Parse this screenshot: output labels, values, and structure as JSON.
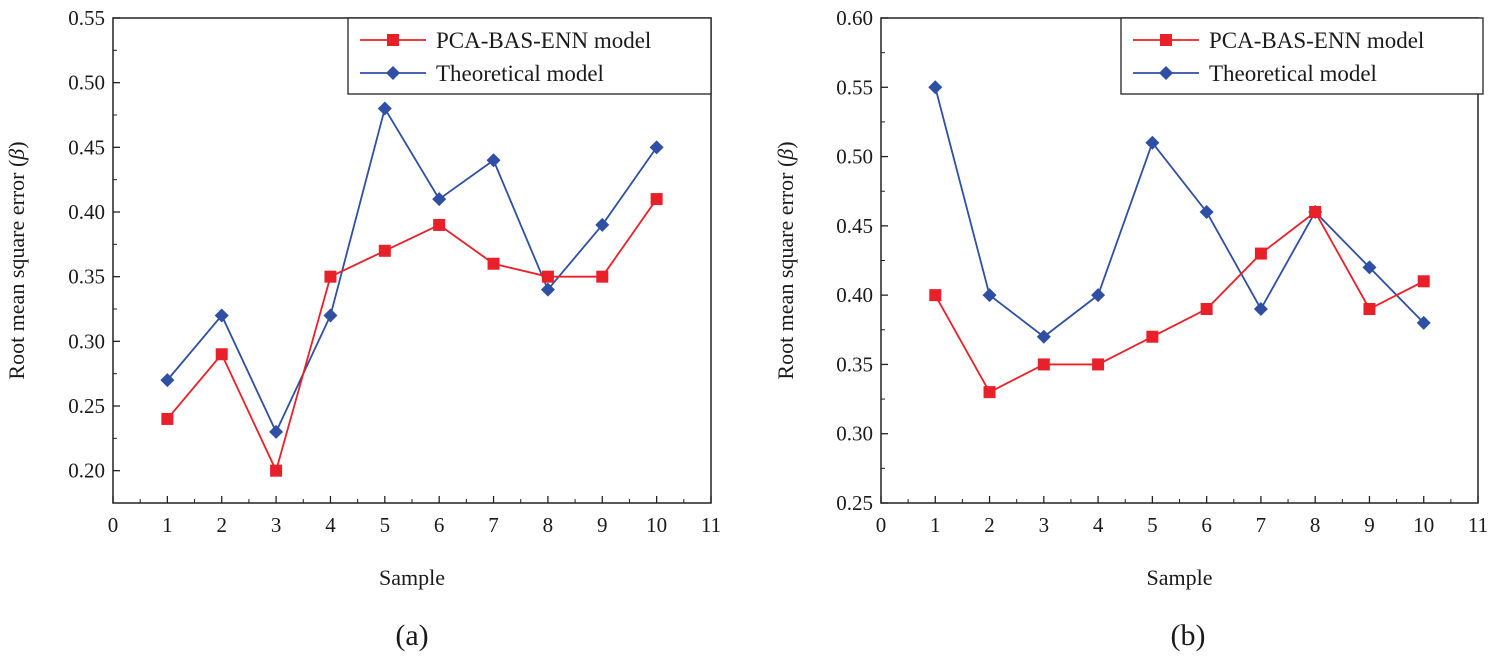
{
  "chart_data": [
    {
      "type": "line",
      "panel_label": "(a)",
      "xlabel": "Sample",
      "ylabel_prefix": "Root mean square error (",
      "ylabel_symbol": "β",
      "ylabel_suffix": ")",
      "xlim": [
        0,
        11
      ],
      "ylim": [
        0.175,
        0.55
      ],
      "x_ticks": [
        0,
        1,
        2,
        3,
        4,
        5,
        6,
        7,
        8,
        9,
        10,
        11
      ],
      "x_tick_labels": [
        "0",
        "1",
        "2",
        "3",
        "4",
        "5",
        "6",
        "7",
        "8",
        "9",
        "10",
        "11"
      ],
      "y_ticks": [
        0.2,
        0.25,
        0.3,
        0.35,
        0.4,
        0.45,
        0.5,
        0.55
      ],
      "y_tick_labels": [
        "0.20",
        "0.25",
        "0.30",
        "0.35",
        "0.40",
        "0.45",
        "0.50",
        "0.55"
      ],
      "legend_position": "top-right",
      "x": [
        1,
        2,
        3,
        4,
        5,
        6,
        7,
        8,
        9,
        10
      ],
      "series": [
        {
          "name": "PCA-BAS-ENN model",
          "color": "#e8202a",
          "marker": "square",
          "values": [
            0.24,
            0.29,
            0.2,
            0.35,
            0.37,
            0.39,
            0.36,
            0.35,
            0.35,
            0.41
          ]
        },
        {
          "name": "Theoretical model",
          "color": "#2e4fa3",
          "marker": "diamond",
          "values": [
            0.27,
            0.32,
            0.23,
            0.32,
            0.48,
            0.41,
            0.44,
            0.34,
            0.39,
            0.45
          ]
        }
      ]
    },
    {
      "type": "line",
      "panel_label": "(b)",
      "xlabel": "Sample",
      "ylabel_prefix": "Root mean square error (",
      "ylabel_symbol": "β",
      "ylabel_suffix": ")",
      "xlim": [
        0,
        11
      ],
      "ylim": [
        0.25,
        0.6
      ],
      "x_ticks": [
        0,
        1,
        2,
        3,
        4,
        5,
        6,
        7,
        8,
        9,
        10,
        11
      ],
      "x_tick_labels": [
        "0",
        "1",
        "2",
        "3",
        "4",
        "5",
        "6",
        "7",
        "8",
        "9",
        "10",
        "11"
      ],
      "y_ticks": [
        0.25,
        0.3,
        0.35,
        0.4,
        0.45,
        0.5,
        0.55,
        0.6
      ],
      "y_tick_labels": [
        "0.25",
        "0.30",
        "0.35",
        "0.40",
        "0.45",
        "0.50",
        "0.55",
        "0.60"
      ],
      "legend_position": "top-right",
      "x": [
        1,
        2,
        3,
        4,
        5,
        6,
        7,
        8,
        9,
        10
      ],
      "series": [
        {
          "name": "PCA-BAS-ENN model",
          "color": "#e8202a",
          "marker": "square",
          "values": [
            0.4,
            0.33,
            0.35,
            0.35,
            0.37,
            0.39,
            0.43,
            0.46,
            0.39,
            0.41
          ]
        },
        {
          "name": "Theoretical model",
          "color": "#2e4fa3",
          "marker": "diamond",
          "values": [
            0.55,
            0.4,
            0.37,
            0.4,
            0.51,
            0.46,
            0.39,
            0.46,
            0.42,
            0.38
          ]
        }
      ]
    }
  ]
}
